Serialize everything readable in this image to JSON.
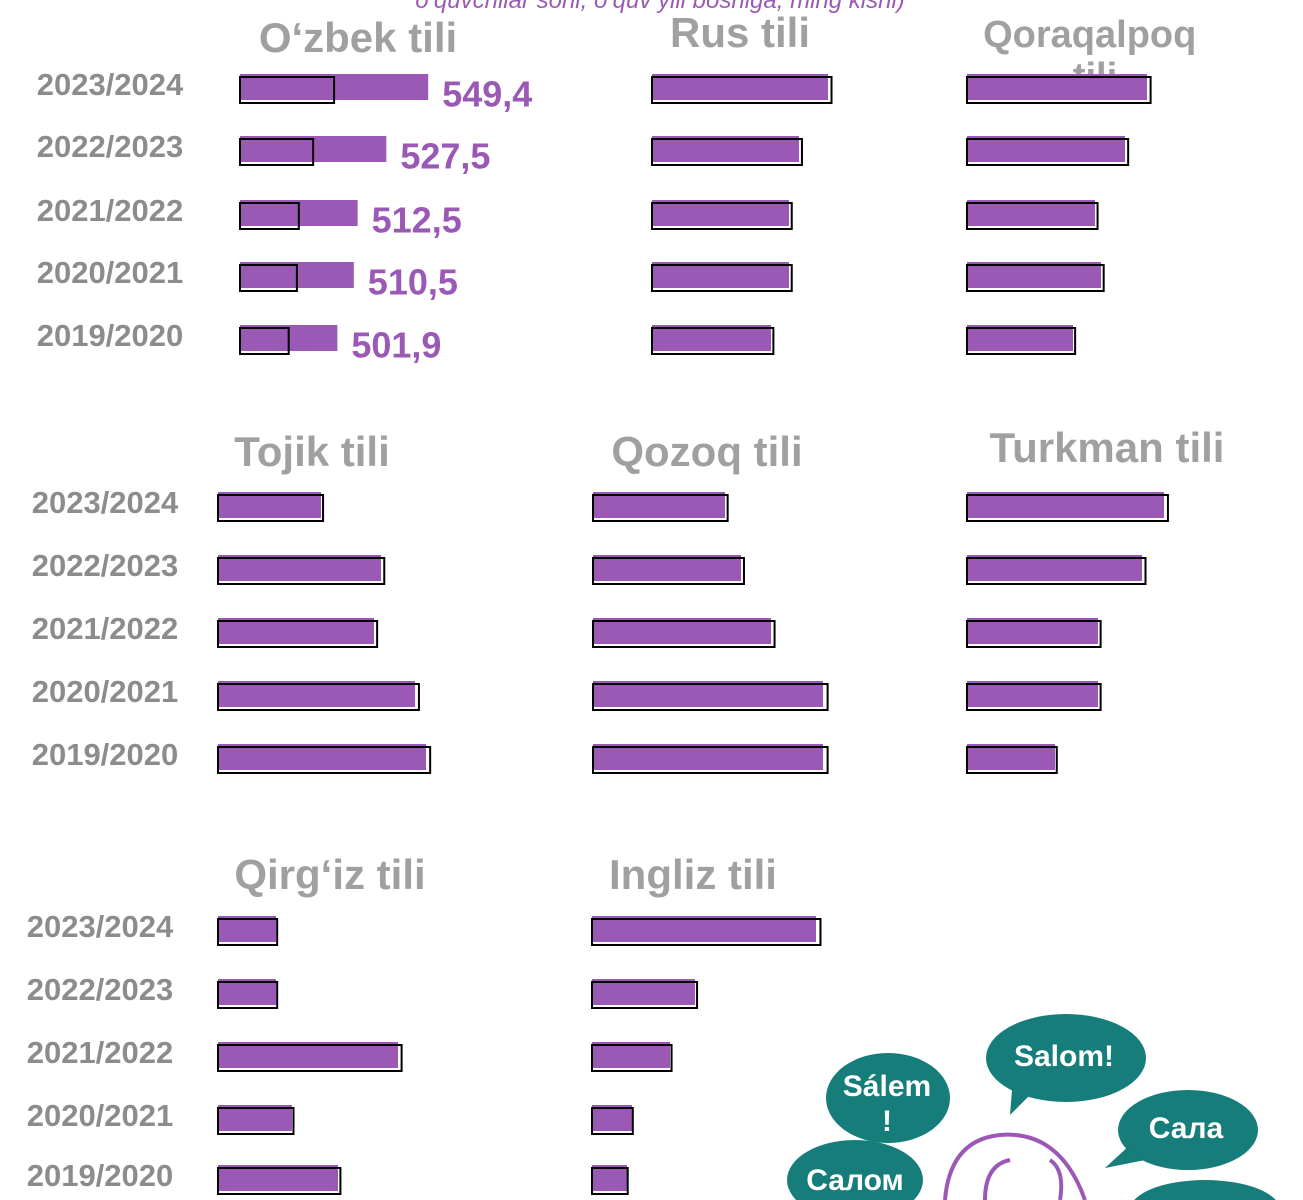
{
  "subtitle": "o‘quvchilar soni, o‘quv yili boshiga, ming kishi)",
  "bubbles": [
    "Salom!",
    "Sálem",
    "!",
    "Сала",
    "Салом"
  ],
  "chart_data": [
    {
      "type": "bar",
      "title": "O‘zbek tili",
      "categories": [
        "2023/2024",
        "2022/2023",
        "2021/2022",
        "2020/2021",
        "2019/2020"
      ],
      "values": [
        549.4,
        527.5,
        512.5,
        510.5,
        501.9
      ],
      "value_labels": [
        "549,4",
        "527,5",
        "512,5",
        "510,5",
        "501,9"
      ],
      "color": "#9b59b6",
      "xlim": [
        451,
        600
      ]
    },
    {
      "type": "bar",
      "title": "Rus tili",
      "categories": [
        null,
        null,
        null,
        null,
        null
      ],
      "values": [
        176,
        147,
        137,
        137,
        119
      ],
      "color": "#9b59b6",
      "xlim": [
        0,
        300
      ]
    },
    {
      "type": "bar",
      "title": "Qoraqalpoq tili",
      "categories": [
        null,
        null,
        null,
        null,
        null
      ],
      "values": [
        180,
        158,
        128,
        134,
        106
      ],
      "color": "#9b59b6",
      "xlim": [
        0,
        300
      ]
    },
    {
      "type": "bar",
      "title": "Tojik tili",
      "categories": [
        "2023/2024",
        "2022/2023",
        "2021/2022",
        "2020/2021",
        "2019/2020"
      ],
      "values": [
        103,
        163,
        156,
        197,
        208
      ],
      "color": "#9b59b6",
      "xlim": [
        0,
        300
      ]
    },
    {
      "type": "bar",
      "title": "Qozoq tili",
      "categories": [
        null,
        null,
        null,
        null,
        null
      ],
      "values": [
        132,
        148,
        178,
        230,
        230
      ],
      "color": "#9b59b6",
      "xlim": [
        0,
        300
      ]
    },
    {
      "type": "bar",
      "title": "Turkman tili",
      "categories": [
        null,
        null,
        null,
        null,
        null
      ],
      "values": [
        197,
        175,
        131,
        131,
        88
      ],
      "color": "#9b59b6",
      "xlim": [
        0,
        300
      ]
    },
    {
      "type": "bar",
      "title": "Qirg‘iz tili",
      "categories": [
        "2023/2024",
        "2022/2023",
        "2021/2022",
        "2020/2021",
        "2019/2020"
      ],
      "values": [
        58,
        58,
        180,
        74,
        120
      ],
      "color": "#9b59b6",
      "xlim": [
        0,
        300
      ]
    },
    {
      "type": "bar",
      "title": "Ingliz tili",
      "categories": [
        null,
        null,
        null,
        null,
        null
      ],
      "values": [
        224,
        103,
        78,
        40,
        35
      ],
      "color": "#9b59b6",
      "xlim": [
        0,
        300
      ]
    }
  ]
}
